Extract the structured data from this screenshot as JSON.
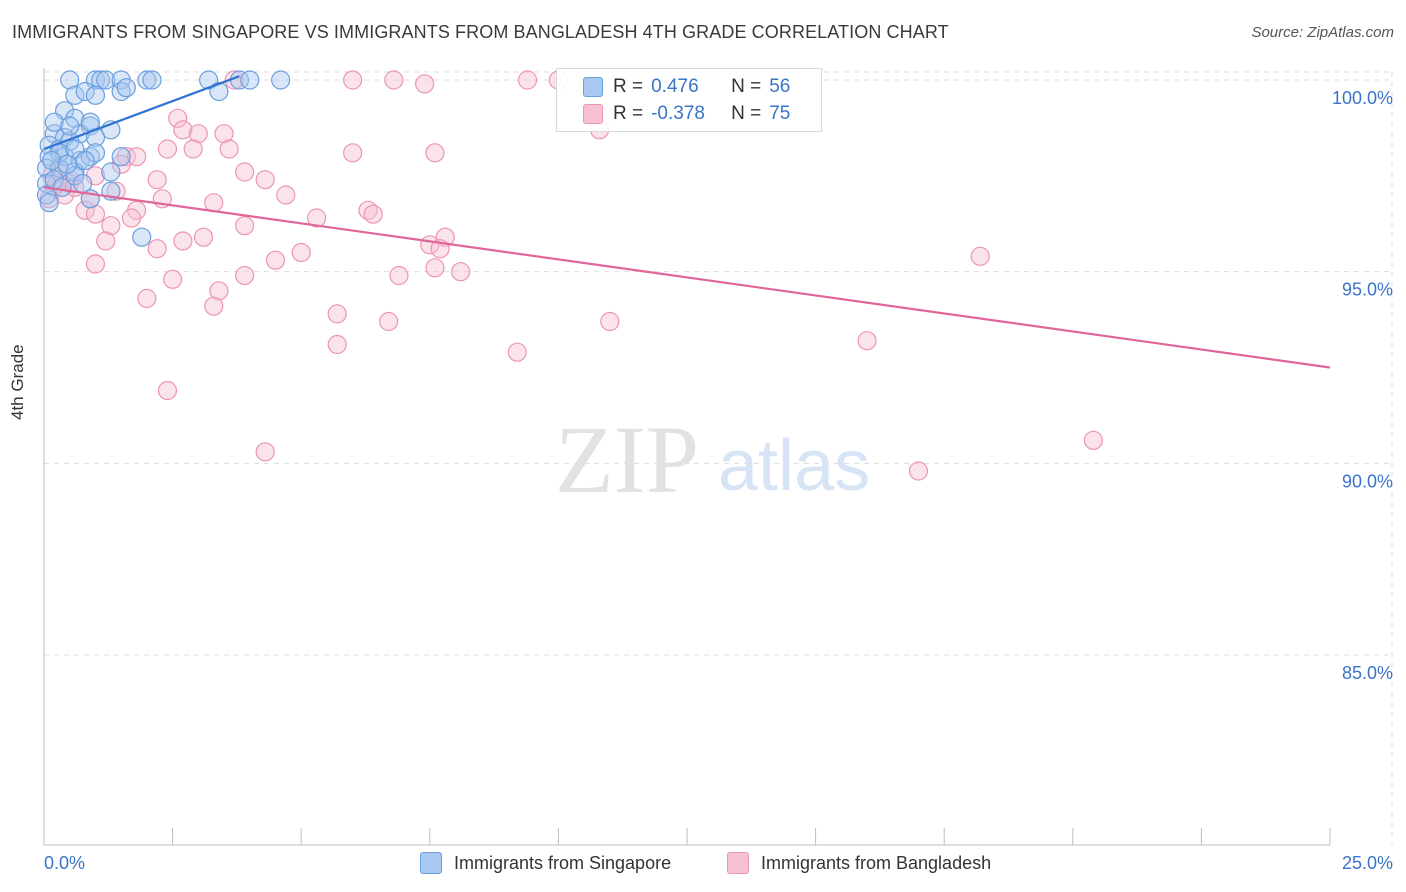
{
  "title": "IMMIGRANTS FROM SINGAPORE VS IMMIGRANTS FROM BANGLADESH 4TH GRADE CORRELATION CHART",
  "source": "Source: ZipAtlas.com",
  "watermark": {
    "zip": "ZIP",
    "atlas": "atlas"
  },
  "legend": {
    "r_label": "R =",
    "n_label": "N =",
    "singapore": {
      "r": "0.476",
      "n": "56"
    },
    "bangladesh": {
      "r": "-0.378",
      "n": "75"
    }
  },
  "colors": {
    "blue_fill": "#a9c8f0",
    "blue_stroke": "#6a9fde",
    "blue_line": "#2f72cf",
    "pink_fill": "#f6c1d2",
    "pink_stroke": "#ec95b2",
    "pink_line": "#e0669a",
    "axis_text": "#3a74c9",
    "grid": "#dcdcdc"
  },
  "chart_data": {
    "type": "scatter",
    "title": "IMMIGRANTS FROM SINGAPORE VS IMMIGRANTS FROM BANGLADESH 4TH GRADE CORRELATION CHART",
    "xlabel": "",
    "ylabel": "4th Grade",
    "xlim": [
      0,
      25
    ],
    "ylim": [
      80,
      100.8
    ],
    "x_tick_labels": {
      "min": "0.0%",
      "max": "25.0%"
    },
    "y_ticks": [
      {
        "value": 100,
        "label": "100.0%"
      },
      {
        "value": 95,
        "label": "95.0%"
      },
      {
        "value": 90,
        "label": "90.0%"
      },
      {
        "value": 85,
        "label": "85.0%"
      }
    ],
    "series": [
      {
        "name": "Immigrants from Singapore",
        "color": "blue",
        "r": 0.476,
        "n": 56,
        "trend": {
          "x": [
            0.0,
            3.8
          ],
          "y": [
            98.2,
            100.1
          ]
        },
        "points": [
          [
            0.5,
            100.0
          ],
          [
            1.0,
            100.0
          ],
          [
            1.1,
            100.0
          ],
          [
            1.2,
            100.0
          ],
          [
            1.5,
            100.0
          ],
          [
            2.0,
            100.0
          ],
          [
            3.2,
            100.0
          ],
          [
            3.8,
            100.0
          ],
          [
            4.0,
            100.0
          ],
          [
            4.6,
            100.0
          ],
          [
            0.6,
            99.6
          ],
          [
            0.8,
            99.7
          ],
          [
            1.0,
            99.6
          ],
          [
            1.5,
            99.7
          ],
          [
            3.4,
            99.7
          ],
          [
            0.4,
            99.2
          ],
          [
            0.6,
            99.0
          ],
          [
            0.9,
            98.8
          ],
          [
            1.3,
            98.7
          ],
          [
            0.2,
            98.6
          ],
          [
            0.4,
            98.5
          ],
          [
            0.7,
            98.6
          ],
          [
            1.0,
            98.5
          ],
          [
            0.1,
            98.3
          ],
          [
            0.3,
            98.2
          ],
          [
            0.5,
            98.4
          ],
          [
            0.1,
            98.0
          ],
          [
            0.4,
            98.0
          ],
          [
            0.7,
            97.9
          ],
          [
            0.9,
            98.0
          ],
          [
            1.5,
            98.0
          ],
          [
            0.05,
            97.7
          ],
          [
            0.3,
            97.7
          ],
          [
            0.6,
            97.6
          ],
          [
            1.3,
            97.6
          ],
          [
            0.05,
            97.3
          ],
          [
            0.2,
            97.4
          ],
          [
            0.6,
            97.5
          ],
          [
            1.3,
            97.1
          ],
          [
            0.05,
            97.0
          ],
          [
            0.9,
            96.9
          ],
          [
            1.9,
            95.9
          ],
          [
            0.2,
            98.9
          ],
          [
            0.5,
            98.8
          ],
          [
            0.9,
            98.9
          ],
          [
            0.3,
            98.1
          ],
          [
            0.6,
            98.2
          ],
          [
            1.0,
            98.1
          ],
          [
            0.15,
            97.9
          ],
          [
            0.45,
            97.8
          ],
          [
            0.8,
            97.9
          ],
          [
            0.1,
            96.8
          ],
          [
            0.35,
            97.2
          ],
          [
            0.75,
            97.3
          ],
          [
            1.6,
            99.8
          ],
          [
            2.1,
            100.0
          ]
        ]
      },
      {
        "name": "Immigrants from Bangladesh",
        "color": "pink",
        "r": -0.378,
        "n": 75,
        "trend": {
          "x": [
            0.0,
            25.0
          ],
          "y": [
            97.2,
            92.5
          ]
        },
        "points": [
          [
            3.7,
            100.0
          ],
          [
            6.0,
            100.0
          ],
          [
            6.8,
            100.0
          ],
          [
            7.4,
            99.9
          ],
          [
            9.4,
            100.0
          ],
          [
            10.0,
            100.0
          ],
          [
            10.8,
            98.7
          ],
          [
            2.6,
            99.0
          ],
          [
            2.7,
            98.7
          ],
          [
            3.0,
            98.6
          ],
          [
            3.5,
            98.6
          ],
          [
            2.4,
            98.2
          ],
          [
            2.9,
            98.2
          ],
          [
            3.6,
            98.2
          ],
          [
            6.0,
            98.1
          ],
          [
            7.6,
            98.1
          ],
          [
            1.6,
            98.0
          ],
          [
            1.8,
            98.0
          ],
          [
            1.5,
            97.8
          ],
          [
            0.3,
            97.6
          ],
          [
            0.5,
            97.4
          ],
          [
            1.0,
            97.5
          ],
          [
            3.9,
            97.6
          ],
          [
            4.3,
            97.4
          ],
          [
            0.2,
            97.2
          ],
          [
            0.4,
            97.0
          ],
          [
            0.5,
            97.3
          ],
          [
            1.4,
            97.1
          ],
          [
            2.2,
            97.4
          ],
          [
            4.7,
            97.0
          ],
          [
            0.9,
            96.9
          ],
          [
            2.3,
            96.9
          ],
          [
            3.3,
            96.8
          ],
          [
            0.8,
            96.6
          ],
          [
            1.0,
            96.5
          ],
          [
            1.8,
            96.6
          ],
          [
            1.7,
            96.4
          ],
          [
            5.3,
            96.4
          ],
          [
            6.3,
            96.6
          ],
          [
            6.4,
            96.5
          ],
          [
            1.3,
            96.2
          ],
          [
            3.9,
            96.2
          ],
          [
            1.2,
            95.8
          ],
          [
            2.2,
            95.6
          ],
          [
            2.7,
            95.8
          ],
          [
            3.1,
            95.9
          ],
          [
            7.5,
            95.7
          ],
          [
            7.8,
            95.9
          ],
          [
            7.7,
            95.6
          ],
          [
            5.0,
            95.5
          ],
          [
            4.5,
            95.3
          ],
          [
            1.0,
            95.2
          ],
          [
            3.9,
            94.9
          ],
          [
            6.9,
            94.9
          ],
          [
            7.6,
            95.1
          ],
          [
            8.1,
            95.0
          ],
          [
            18.2,
            95.4
          ],
          [
            2.5,
            94.8
          ],
          [
            3.4,
            94.5
          ],
          [
            2.0,
            94.3
          ],
          [
            3.3,
            94.1
          ],
          [
            5.7,
            93.9
          ],
          [
            6.7,
            93.7
          ],
          [
            11.0,
            93.7
          ],
          [
            16.0,
            93.2
          ],
          [
            5.7,
            93.1
          ],
          [
            9.2,
            92.9
          ],
          [
            2.4,
            91.9
          ],
          [
            4.3,
            90.3
          ],
          [
            17.0,
            89.8
          ],
          [
            20.4,
            90.6
          ],
          [
            0.1,
            96.9
          ],
          [
            0.25,
            97.3
          ],
          [
            0.6,
            97.2
          ],
          [
            0.15,
            97.5
          ]
        ]
      }
    ]
  },
  "bottom_legend": {
    "singapore": "Immigrants from Singapore",
    "bangladesh": "Immigrants from Bangladesh"
  }
}
